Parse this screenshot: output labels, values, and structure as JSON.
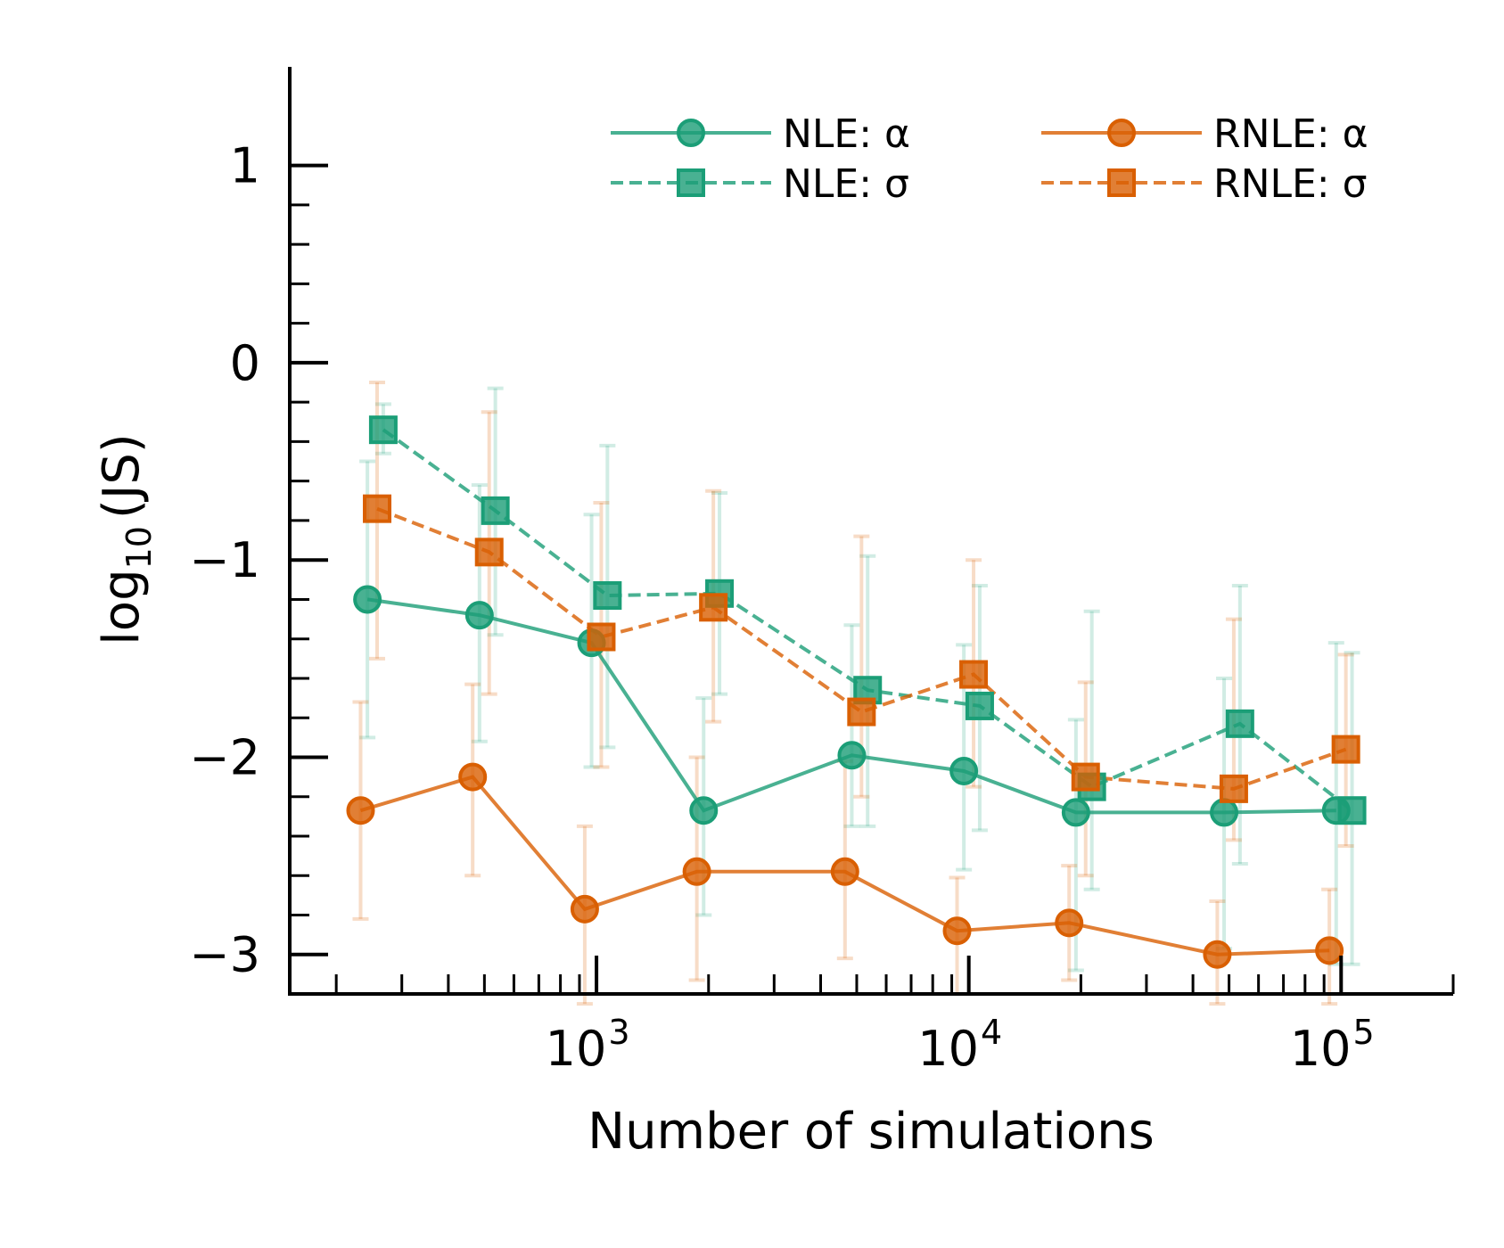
{
  "chart_data": {
    "type": "line",
    "title": "",
    "xlabel": "Number of simulations",
    "ylabel": "log10 (JS)",
    "ylabel_base": "log",
    "ylabel_sub": "10",
    "ylabel_rest": "(JS)",
    "xscale": "log",
    "xlim": [
      150,
      200000
    ],
    "ylim": [
      -3.2,
      1.5
    ],
    "x": [
      250,
      500,
      1000,
      2000,
      5000,
      10000,
      20000,
      50000,
      100000
    ],
    "x_tick_labels": [
      {
        "value": 1000,
        "base": "10",
        "exp": "3"
      },
      {
        "value": 10000,
        "base": "10",
        "exp": "4"
      },
      {
        "value": 100000,
        "base": "10",
        "exp": "5"
      }
    ],
    "y_ticks": [
      1,
      0,
      -1,
      -2,
      -3
    ],
    "y_tick_labels": [
      "1",
      "0",
      "−1",
      "−2",
      "−3"
    ],
    "legend": {
      "position": "top-right",
      "ncol": 2,
      "entries": [
        "NLE: α",
        "NLE: σ",
        "RNLE: α",
        "RNLE: σ"
      ]
    },
    "series": [
      {
        "name": "NLE: α",
        "color": "#1b9e77",
        "linestyle": "solid",
        "marker": "circle",
        "offset": 0.97,
        "values": [
          -1.2,
          -1.28,
          -1.42,
          -2.27,
          -1.99,
          -2.07,
          -2.28,
          -2.28,
          -2.27
        ],
        "err_low": [
          -1.9,
          -1.92,
          -2.05,
          -2.8,
          -2.35,
          -2.57,
          -3.08,
          -2.97,
          -3.05
        ],
        "err_high": [
          -0.5,
          -0.62,
          -0.77,
          -1.7,
          -1.33,
          -1.43,
          -1.81,
          -1.6,
          -1.42
        ]
      },
      {
        "name": "NLE: σ",
        "color": "#1b9e77",
        "linestyle": "dashed",
        "marker": "square",
        "offset": 1.07,
        "values": [
          -0.34,
          -0.75,
          -1.18,
          -1.17,
          -1.66,
          -1.74,
          -2.15,
          -1.83,
          -2.27
        ],
        "err_low": [
          -0.46,
          -1.38,
          -1.95,
          -1.68,
          -2.35,
          -2.37,
          -2.67,
          -2.54,
          -3.05
        ],
        "err_high": [
          -0.21,
          -0.13,
          -0.42,
          -0.66,
          -0.98,
          -1.13,
          -1.26,
          -1.13,
          -1.47
        ]
      },
      {
        "name": "RNLE: α",
        "color": "#d95f02",
        "linestyle": "solid",
        "marker": "circle",
        "offset": 0.93,
        "values": [
          -2.27,
          -2.1,
          -2.77,
          -2.58,
          -2.58,
          -2.88,
          -2.84,
          -3.0,
          -2.98
        ],
        "err_low": [
          -2.82,
          -2.6,
          -3.25,
          -3.13,
          -3.02,
          -3.2,
          -3.13,
          -3.25,
          -3.25
        ],
        "err_high": [
          -1.72,
          -1.63,
          -2.35,
          -2.0,
          -2.02,
          -2.61,
          -2.55,
          -2.73,
          -2.67
        ]
      },
      {
        "name": "RNLE: σ",
        "color": "#d95f02",
        "linestyle": "dashed",
        "marker": "square",
        "offset": 1.03,
        "values": [
          -0.74,
          -0.96,
          -1.39,
          -1.24,
          -1.77,
          -1.58,
          -2.1,
          -2.16,
          -1.96
        ],
        "err_low": [
          -1.5,
          -1.68,
          -2.05,
          -1.82,
          -2.2,
          -2.15,
          -2.6,
          -2.42,
          -2.45
        ],
        "err_high": [
          -0.1,
          -0.25,
          -0.71,
          -0.65,
          -0.88,
          -1.0,
          -1.62,
          -1.3,
          -1.48
        ]
      }
    ]
  }
}
